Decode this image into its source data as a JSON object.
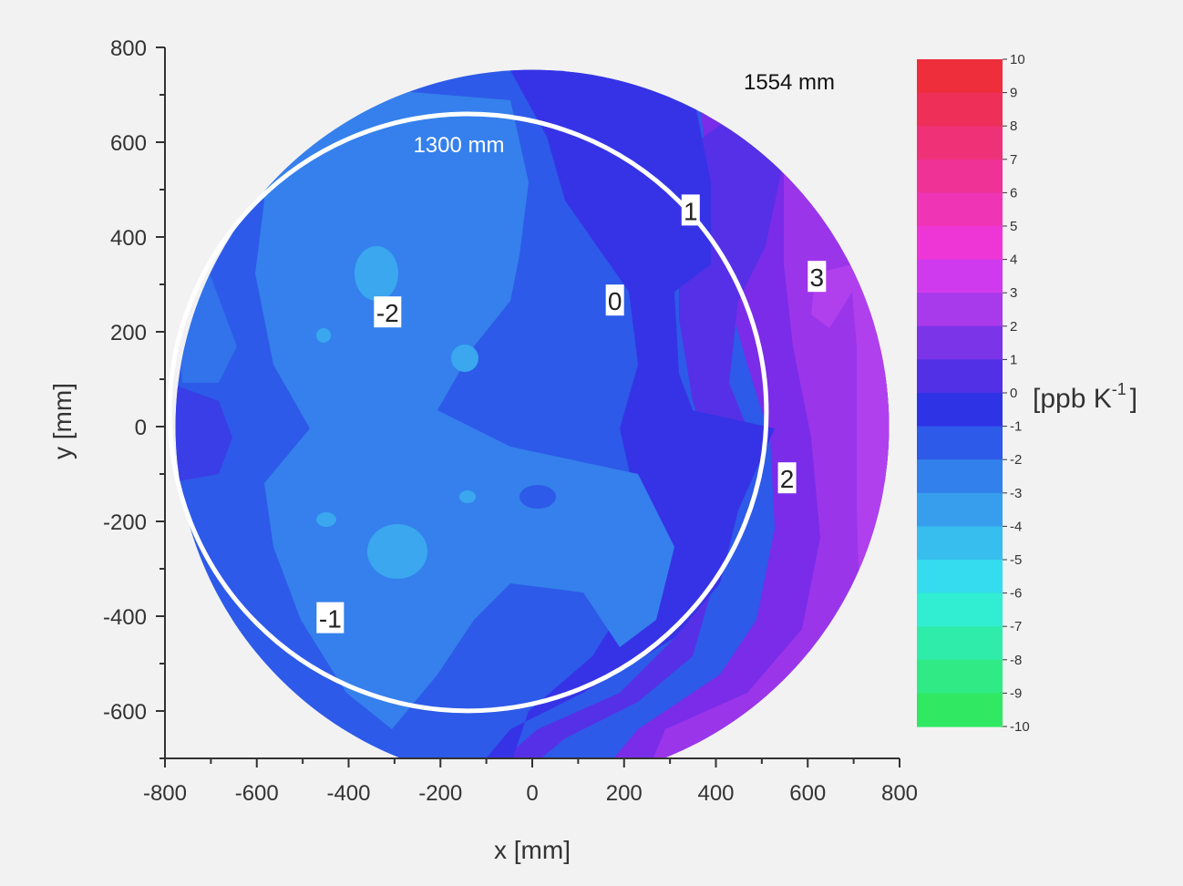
{
  "chart_data": {
    "type": "heatmap",
    "xlabel": "x [mm]",
    "ylabel": "y [mm]",
    "xlim": [
      -800,
      800
    ],
    "ylim": [
      -700,
      800
    ],
    "x_ticks": [
      -800,
      -600,
      -400,
      -200,
      0,
      200,
      400,
      600,
      800
    ],
    "y_ticks": [
      -600,
      -400,
      -200,
      0,
      200,
      400,
      600,
      800
    ],
    "colorbar": {
      "unit_label": "[ppb K",
      "unit_exponent": "-1",
      "unit_close": "]",
      "min": -10,
      "max": 10,
      "levels": [
        10,
        9,
        8,
        7,
        6,
        5,
        4,
        3,
        2,
        1,
        0,
        -1,
        -2,
        -3,
        -4,
        -5,
        -6,
        -7,
        -8,
        -9,
        -10
      ]
    },
    "outer_circle": {
      "label": "1554 mm",
      "center": [
        0,
        0
      ],
      "diameter": 1554
    },
    "inner_circle": {
      "label": "1300 mm",
      "center": [
        -140,
        30
      ],
      "diameter": 1300
    },
    "contour_labels": [
      {
        "text": "-2",
        "x": -315,
        "y": 240
      },
      {
        "text": "0",
        "x": 180,
        "y": 265
      },
      {
        "text": "1",
        "x": 345,
        "y": 455
      },
      {
        "text": "3",
        "x": 620,
        "y": 315
      },
      {
        "text": "2",
        "x": 555,
        "y": -110
      },
      {
        "text": "-1",
        "x": -440,
        "y": -405
      }
    ],
    "grid": false
  }
}
